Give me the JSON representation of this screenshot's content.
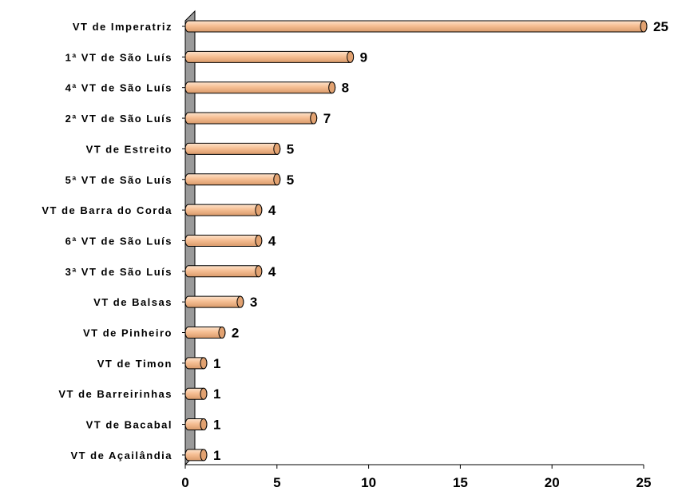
{
  "chart_data": {
    "type": "bar",
    "orientation": "horizontal",
    "categories": [
      "VT de Imperatriz",
      "1ª VT de São Luís",
      "4ª VT de São Luís",
      "2ª VT de São Luís",
      "VT de Estreito",
      "5ª VT de São Luís",
      "VT de Barra do Corda",
      "6ª VT de São Luís",
      "3ª VT de São Luís",
      "VT de Balsas",
      "VT de Pinheiro",
      "VT de Timon",
      "VT de Barreirinhas",
      "VT de Bacabal",
      "VT de Açailândia"
    ],
    "values": [
      25,
      9,
      8,
      7,
      5,
      5,
      4,
      4,
      4,
      3,
      2,
      1,
      1,
      1,
      1
    ],
    "value_labels": [
      "25",
      "9",
      "8",
      "7",
      "5",
      "5",
      "4",
      "4",
      "4",
      "3",
      "2",
      "1",
      "1",
      "1",
      "1"
    ],
    "xlim": [
      0,
      25
    ],
    "xticks": [
      0,
      5,
      10,
      15,
      20,
      25
    ],
    "xtick_labels": [
      "0",
      "5",
      "10",
      "15",
      "20",
      "25"
    ],
    "grid": false,
    "legend": "none",
    "colors": {
      "bar_fill": "#f9c49a",
      "bar_stroke": "#000000",
      "wall": "#9a9a9a"
    }
  }
}
